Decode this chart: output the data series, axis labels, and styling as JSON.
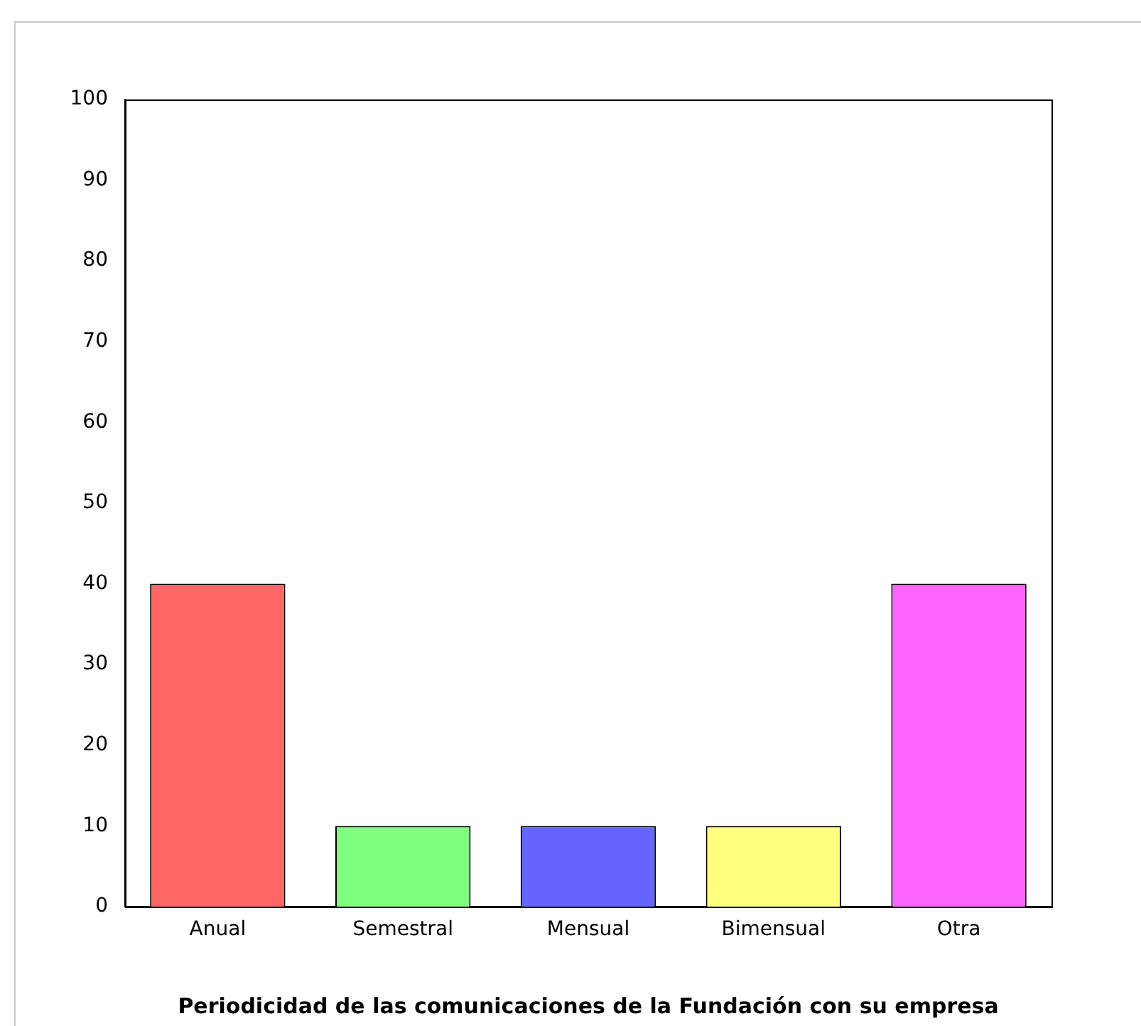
{
  "chart_data": {
    "type": "bar",
    "xlabel": "Periodicidad de las comunicaciones de la Fundación con su empresa",
    "categories": [
      "Anual",
      "Semestral",
      "Mensual",
      "Bimensual",
      "Otra"
    ],
    "values": [
      40,
      10,
      10,
      10,
      40
    ],
    "colors": [
      "#ff6666",
      "#80ff80",
      "#6666ff",
      "#ffff80",
      "#ff66ff"
    ],
    "ylim": [
      0,
      100
    ],
    "yticks": [
      0,
      10,
      20,
      30,
      40,
      50,
      60,
      70,
      80,
      90,
      100
    ],
    "grid": false,
    "legend": false
  }
}
